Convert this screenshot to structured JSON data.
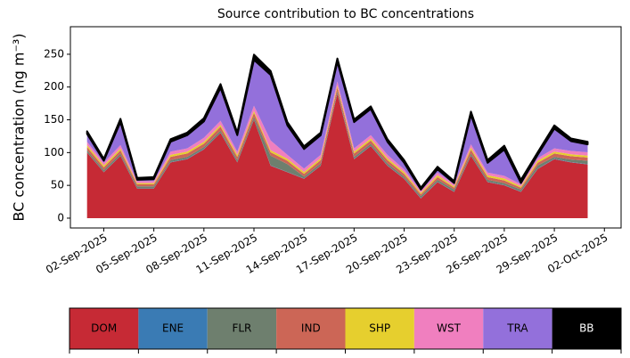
{
  "chart_data": {
    "type": "stacked-area",
    "title": "Source contribution to BC concentrations",
    "y_label": "BC concentration (ng m⁻³)",
    "x": [
      "2025-09-01",
      "2025-09-02",
      "2025-09-03",
      "2025-09-04",
      "2025-09-05",
      "2025-09-06",
      "2025-09-07",
      "2025-09-08",
      "2025-09-09",
      "2025-09-10",
      "2025-09-11",
      "2025-09-12",
      "2025-09-13",
      "2025-09-14",
      "2025-09-15",
      "2025-09-16",
      "2025-09-17",
      "2025-09-18",
      "2025-09-19",
      "2025-09-20",
      "2025-09-21",
      "2025-09-22",
      "2025-09-23",
      "2025-09-24",
      "2025-09-25",
      "2025-09-26",
      "2025-09-27",
      "2025-09-28",
      "2025-09-29",
      "2025-09-30",
      "2025-10-01"
    ],
    "xlim": [
      "2025-08-31",
      "2025-10-03"
    ],
    "xticks": [
      {
        "value": "2025-09-02",
        "label": "02-Sep-2025"
      },
      {
        "value": "2025-09-05",
        "label": "05-Sep-2025"
      },
      {
        "value": "2025-09-08",
        "label": "08-Sep-2025"
      },
      {
        "value": "2025-09-11",
        "label": "11-Sep-2025"
      },
      {
        "value": "2025-09-14",
        "label": "14-Sep-2025"
      },
      {
        "value": "2025-09-17",
        "label": "17-Sep-2025"
      },
      {
        "value": "2025-09-20",
        "label": "20-Sep-2025"
      },
      {
        "value": "2025-09-23",
        "label": "23-Sep-2025"
      },
      {
        "value": "2025-09-26",
        "label": "26-Sep-2025"
      },
      {
        "value": "2025-09-29",
        "label": "29-Sep-2025"
      },
      {
        "value": "2025-10-02",
        "label": "02-Oct-2025"
      }
    ],
    "ylim": [
      -15,
      292
    ],
    "yticks": [
      0,
      50,
      100,
      150,
      200,
      250
    ],
    "series": [
      {
        "name": "DOM",
        "color": "#c62a35",
        "values": [
          100,
          70,
          95,
          45,
          45,
          85,
          90,
          105,
          130,
          85,
          150,
          80,
          70,
          60,
          80,
          190,
          90,
          110,
          80,
          60,
          30,
          55,
          40,
          95,
          55,
          50,
          40,
          75,
          90,
          85,
          82
        ]
      },
      {
        "name": "ENE",
        "color": "#3a7bb4",
        "values": [
          0.5,
          0.5,
          0.5,
          0.5,
          0.5,
          0.5,
          0.5,
          0.5,
          0.5,
          0.5,
          0.5,
          0.5,
          0.5,
          0.5,
          0.5,
          0.5,
          0.5,
          0.5,
          0.5,
          0.5,
          0.5,
          0.5,
          0.5,
          0.5,
          0.5,
          0.5,
          0.5,
          0.5,
          0.5,
          0.5,
          0.5
        ]
      },
      {
        "name": "FLR",
        "color": "#6e7f6e",
        "values": [
          3,
          3,
          3,
          3,
          3,
          3,
          3,
          3,
          3,
          3,
          4,
          15,
          12,
          3,
          3,
          3,
          3,
          3,
          3,
          3,
          3,
          3,
          3,
          3,
          3,
          3,
          3,
          5,
          3,
          4,
          5
        ]
      },
      {
        "name": "IND",
        "color": "#cc6656",
        "values": [
          5,
          4,
          5,
          3,
          3,
          5,
          5,
          5,
          6,
          5,
          6,
          5,
          5,
          4,
          5,
          6,
          5,
          5,
          5,
          4,
          3,
          4,
          3,
          6,
          4,
          4,
          3,
          4,
          5,
          5,
          5
        ]
      },
      {
        "name": "SHP",
        "color": "#e6cf2e",
        "values": [
          3,
          3,
          3,
          2,
          2,
          3,
          3,
          3,
          3,
          3,
          3,
          3,
          3,
          3,
          3,
          3,
          3,
          3,
          3,
          3,
          2,
          3,
          2,
          3,
          3,
          3,
          2,
          3,
          3,
          3,
          3
        ]
      },
      {
        "name": "WST",
        "color": "#f07fbf",
        "values": [
          5,
          4,
          5,
          3,
          3,
          5,
          5,
          6,
          6,
          5,
          8,
          15,
          6,
          5,
          5,
          6,
          5,
          5,
          5,
          4,
          3,
          4,
          3,
          5,
          4,
          4,
          3,
          4,
          5,
          5,
          5
        ]
      },
      {
        "name": "TRA",
        "color": "#9370db",
        "values": [
          12,
          3,
          35,
          2,
          3,
          15,
          20,
          25,
          50,
          25,
          70,
          100,
          45,
          30,
          30,
          30,
          40,
          40,
          20,
          10,
          2,
          5,
          2,
          45,
          15,
          40,
          2,
          5,
          30,
          15,
          12
        ]
      },
      {
        "name": "BB",
        "color": "#000000",
        "values": [
          4,
          3,
          5,
          3,
          3,
          4,
          4,
          5,
          6,
          4,
          8,
          6,
          5,
          4,
          4,
          5,
          4,
          4,
          4,
          4,
          3,
          4,
          3,
          5,
          4,
          6,
          5,
          4,
          5,
          4,
          4
        ]
      }
    ]
  }
}
